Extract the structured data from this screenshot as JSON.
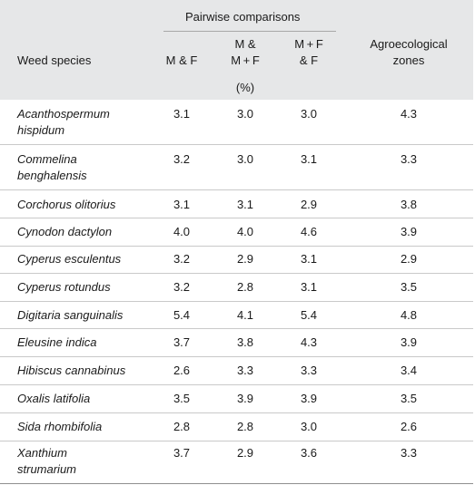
{
  "header": {
    "group_label": "Pairwise comparisons",
    "species_label": "Weed species",
    "col1_label": "M & F",
    "col2_line1": "M &",
    "col2_line2": "M + F",
    "col3_line1": "M + F",
    "col3_line2": "& F",
    "col4_line1": "Agroecological",
    "col4_line2": "zones",
    "unit": "(%)"
  },
  "rows": [
    {
      "species_line1": "Acanthospermum",
      "species_line2": "hispidum",
      "v1": "3.1",
      "v2": "3.0",
      "v3": "3.0",
      "v4": "4.3"
    },
    {
      "species_line1": "Commelina",
      "species_line2": "benghalensis",
      "v1": "3.2",
      "v2": "3.0",
      "v3": "3.1",
      "v4": "3.3"
    },
    {
      "species_line1": "Corchorus olitorius",
      "species_line2": "",
      "v1": "3.1",
      "v2": "3.1",
      "v3": "2.9",
      "v4": "3.8"
    },
    {
      "species_line1": "Cynodon dactylon",
      "species_line2": "",
      "v1": "4.0",
      "v2": "4.0",
      "v3": "4.6",
      "v4": "3.9"
    },
    {
      "species_line1": "Cyperus esculentus",
      "species_line2": "",
      "v1": "3.2",
      "v2": "2.9",
      "v3": "3.1",
      "v4": "2.9"
    },
    {
      "species_line1": "Cyperus rotundus",
      "species_line2": "",
      "v1": "3.2",
      "v2": "2.8",
      "v3": "3.1",
      "v4": "3.5"
    },
    {
      "species_line1": "Digitaria sanguinalis",
      "species_line2": "",
      "v1": "5.4",
      "v2": "4.1",
      "v3": "5.4",
      "v4": "4.8"
    },
    {
      "species_line1": "Eleusine indica",
      "species_line2": "",
      "v1": "3.7",
      "v2": "3.8",
      "v3": "4.3",
      "v4": "3.9"
    },
    {
      "species_line1": "Hibiscus cannabinus",
      "species_line2": "",
      "v1": "2.6",
      "v2": "3.3",
      "v3": "3.3",
      "v4": "3.4"
    },
    {
      "species_line1": "Oxalis latifolia",
      "species_line2": "",
      "v1": "3.5",
      "v2": "3.9",
      "v3": "3.9",
      "v4": "3.5"
    },
    {
      "species_line1": "Sida rhombifolia",
      "species_line2": "",
      "v1": "2.8",
      "v2": "2.8",
      "v3": "3.0",
      "v4": "2.6"
    },
    {
      "species_line1": "Xanthium",
      "species_line2": "strumarium",
      "v1": "3.7",
      "v2": "2.9",
      "v3": "3.6",
      "v4": "3.3"
    }
  ]
}
